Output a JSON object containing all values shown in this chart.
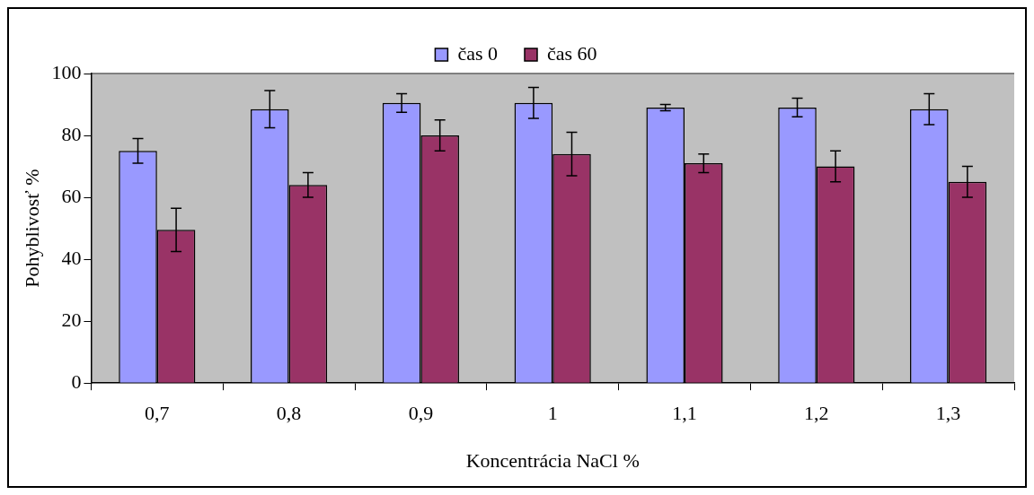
{
  "chart_data": {
    "type": "bar",
    "xlabel": "Koncentrácia NaCl %",
    "ylabel": "Pohyblivosť %",
    "categories": [
      "0,7",
      "0,8",
      "0,9",
      "1",
      "1,1",
      "1,2",
      "1,3"
    ],
    "series": [
      {
        "name": "čas 0",
        "color": "#9999ff",
        "values": [
          75,
          88.5,
          90.5,
          90.5,
          89,
          89,
          88.5
        ],
        "errors": [
          4,
          6,
          3,
          5,
          1,
          3,
          5
        ]
      },
      {
        "name": "čas 60",
        "color": "#993366",
        "values": [
          49.5,
          64,
          80,
          74,
          71,
          70,
          65
        ],
        "errors": [
          7,
          4,
          5,
          7,
          3,
          5,
          5
        ]
      }
    ],
    "ylim": [
      0,
      100
    ],
    "yticks": [
      0,
      20,
      40,
      60,
      80,
      100
    ],
    "grid": false,
    "legend": "top"
  }
}
